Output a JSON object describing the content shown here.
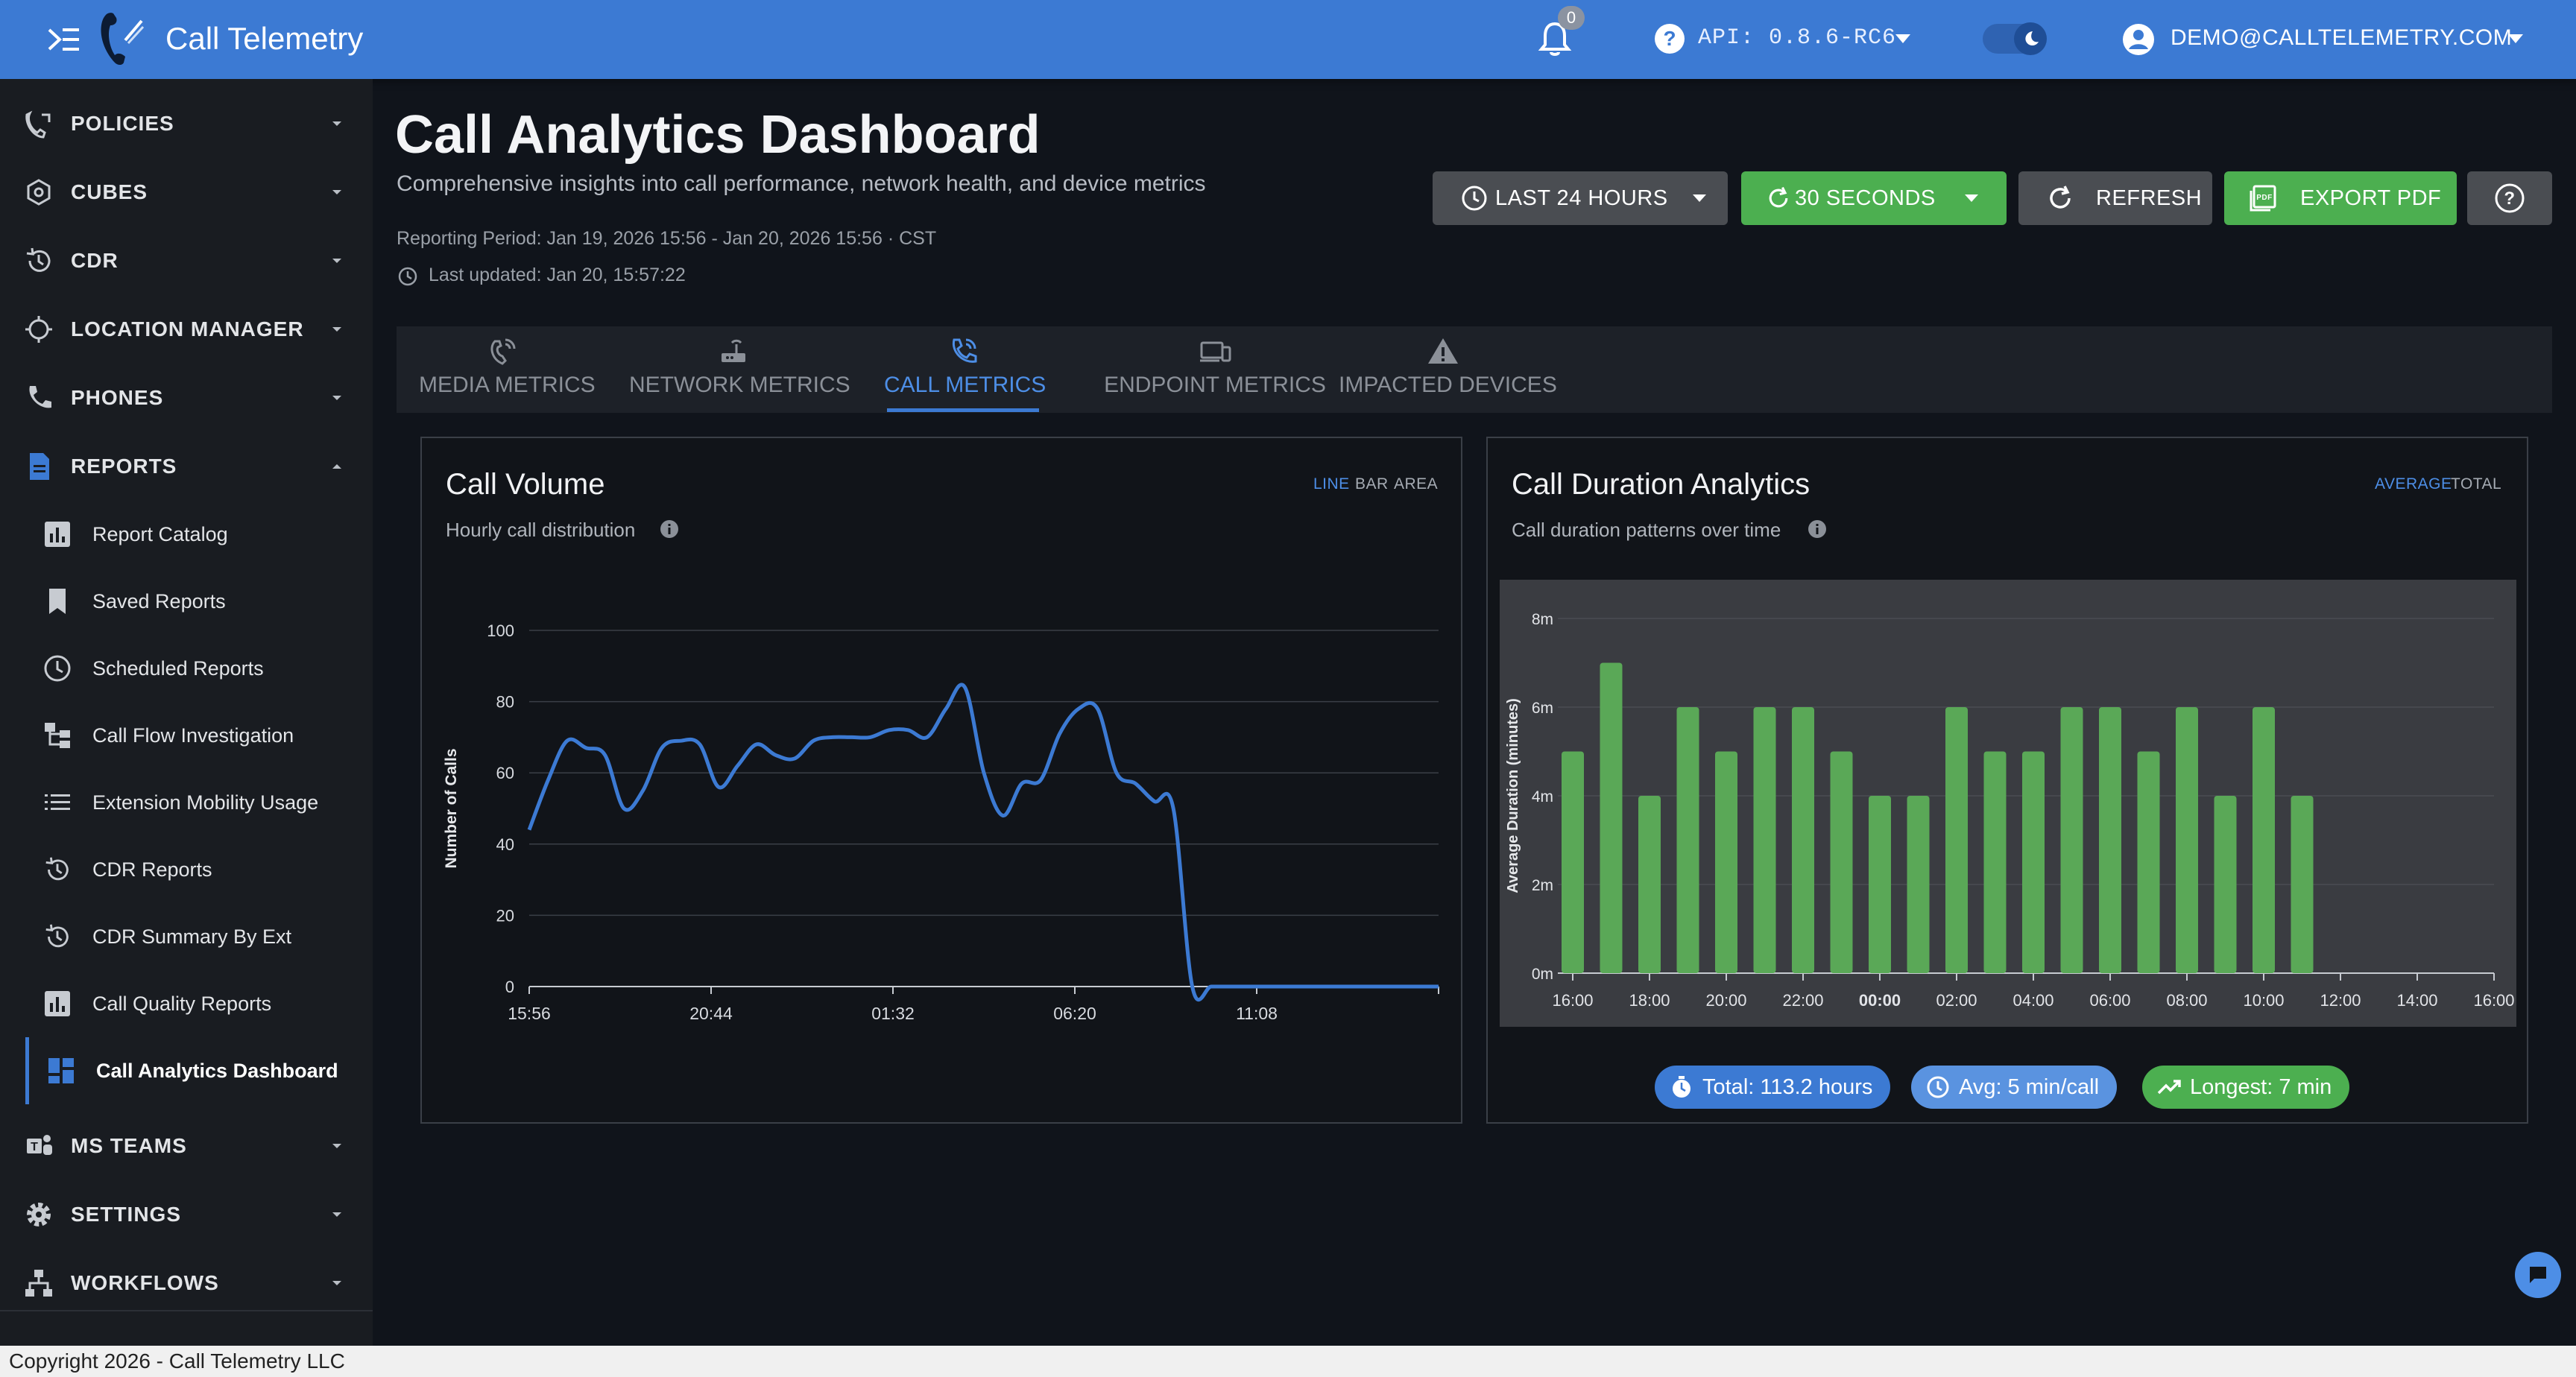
{
  "app": {
    "title": "Call Telemetry",
    "notification_count": "0",
    "api_version": "API: 0.8.6-RC6",
    "user_email": "DEMO@CALLTELEMETRY.COM",
    "accent_color": "#3c7ad3"
  },
  "sidebar": {
    "items": [
      {
        "label": "POLICIES",
        "icon": "phone-policy-icon"
      },
      {
        "label": "CUBES",
        "icon": "cube-icon"
      },
      {
        "label": "CDR",
        "icon": "history-icon"
      },
      {
        "label": "LOCATION MANAGER",
        "icon": "crosshair-icon"
      },
      {
        "label": "PHONES",
        "icon": "phone-icon"
      },
      {
        "label": "REPORTS",
        "icon": "report-icon"
      },
      {
        "label": "MS TEAMS",
        "icon": "teams-icon"
      },
      {
        "label": "SETTINGS",
        "icon": "gear-icon"
      },
      {
        "label": "WORKFLOWS",
        "icon": "workflow-icon"
      }
    ],
    "reports_children": [
      {
        "label": "Report Catalog",
        "icon": "bar-chart-icon"
      },
      {
        "label": "Saved Reports",
        "icon": "bookmark-icon"
      },
      {
        "label": "Scheduled Reports",
        "icon": "clock-icon"
      },
      {
        "label": "Call Flow Investigation",
        "icon": "flow-icon"
      },
      {
        "label": "Extension Mobility Usage",
        "icon": "list-icon"
      },
      {
        "label": "CDR Reports",
        "icon": "history-icon"
      },
      {
        "label": "CDR Summary By Ext",
        "icon": "history-icon"
      },
      {
        "label": "Call Quality Reports",
        "icon": "bar-chart-icon"
      },
      {
        "label": "Call Analytics Dashboard",
        "icon": "dashboard-icon",
        "active": true
      }
    ]
  },
  "header": {
    "title": "Call Analytics Dashboard",
    "subtitle": "Comprehensive insights into call performance, network health, and device metrics",
    "reporting_period": "Reporting Period: Jan 19, 2026 15:56 - Jan 20, 2026 15:56 · CST",
    "last_updated": "Last updated: Jan 20, 15:57:22"
  },
  "toolbar": {
    "time_range": "LAST 24 HOURS",
    "refresh_interval": "30 SECONDS",
    "refresh_label": "REFRESH",
    "export_label": "EXPORT PDF"
  },
  "tabs": [
    {
      "label": "MEDIA METRICS",
      "icon": "media-metrics-icon"
    },
    {
      "label": "NETWORK METRICS",
      "icon": "router-icon"
    },
    {
      "label": "CALL METRICS",
      "icon": "phone-call-icon",
      "active": true
    },
    {
      "label": "ENDPOINT METRICS",
      "icon": "devices-icon"
    },
    {
      "label": "IMPACTED DEVICES",
      "icon": "warning-icon"
    }
  ],
  "call_volume": {
    "title": "Call Volume",
    "subtitle": "Hourly call distribution",
    "toggles": [
      "LINE",
      "BAR",
      "AREA"
    ],
    "active_toggle": "LINE"
  },
  "call_duration": {
    "title": "Call Duration Analytics",
    "subtitle": "Call duration patterns over time",
    "toggles": [
      "AVERAGE",
      "TOTAL"
    ],
    "active_toggle": "AVERAGE",
    "chips": {
      "total": "Total: 113.2 hours",
      "avg": "Avg: 5 min/call",
      "longest": "Longest: 7 min"
    }
  },
  "chart_data": [
    {
      "type": "line",
      "ylabel": "Number of Calls",
      "ylim": [
        0,
        100
      ],
      "yticks": [
        "0",
        "20",
        "40",
        "60",
        "80",
        "100"
      ],
      "xticks": [
        "15:56",
        "20:44",
        "01:32",
        "06:20",
        "11:08"
      ],
      "x_hours": [
        0,
        0.5,
        1,
        1.5,
        2,
        2.5,
        3,
        3.5,
        4,
        4.5,
        5,
        5.5,
        6,
        6.5,
        7,
        7.5,
        8,
        8.5,
        9,
        9.5,
        10,
        10.5,
        11,
        11.5,
        12,
        12.5,
        13,
        13.5,
        14,
        14.5,
        15,
        15.5,
        16,
        16.5,
        17,
        17.5,
        18,
        18.5,
        19,
        19.5,
        20,
        20.5,
        21,
        21.5,
        22,
        22.5,
        23,
        23.5,
        24
      ],
      "values": [
        44,
        58,
        69,
        67,
        65,
        50,
        55,
        67,
        69,
        68,
        56,
        62,
        68,
        65,
        64,
        69,
        70,
        70,
        70,
        72,
        72,
        70,
        78,
        84,
        60,
        48,
        57,
        58,
        71,
        78,
        78,
        60,
        57,
        52,
        50,
        0,
        0,
        0,
        0,
        0,
        0,
        0,
        0,
        0,
        0,
        0,
        0,
        0,
        0
      ],
      "color": "#3c7ad3"
    },
    {
      "type": "bar",
      "ylabel": "Average Duration (minutes)",
      "ylim": [
        0,
        8
      ],
      "yticks": [
        "0m",
        "2m",
        "4m",
        "6m",
        "8m"
      ],
      "xticks": [
        "16:00",
        "18:00",
        "20:00",
        "22:00",
        "00:00",
        "02:00",
        "04:00",
        "06:00",
        "08:00",
        "10:00",
        "12:00",
        "14:00",
        "16:00"
      ],
      "bold_xtick": "00:00",
      "categories": [
        "16:00",
        "17:00",
        "18:00",
        "19:00",
        "20:00",
        "21:00",
        "22:00",
        "23:00",
        "00:00",
        "01:00",
        "02:00",
        "03:00",
        "04:00",
        "05:00",
        "06:00",
        "07:00",
        "08:00",
        "09:00",
        "10:00",
        "11:00",
        "12:00",
        "13:00",
        "14:00",
        "15:00",
        "16:00"
      ],
      "values": [
        5,
        7,
        4,
        6,
        5,
        6,
        6,
        5,
        4,
        4,
        6,
        5,
        5,
        6,
        6,
        5,
        6,
        4,
        6,
        4,
        0,
        0,
        0,
        0,
        0
      ],
      "color": "#5aa857"
    }
  ]
}
